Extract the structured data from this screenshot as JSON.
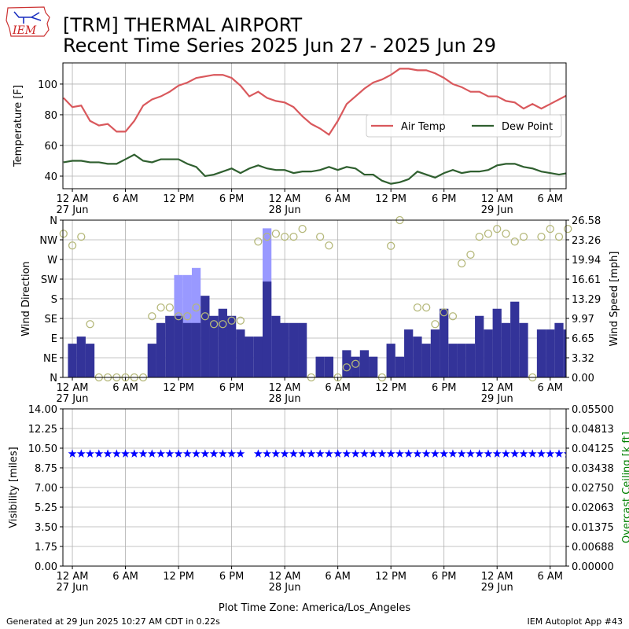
{
  "header": {
    "title_line1": "[TRM] THERMAL AIRPORT",
    "title_line2": "Recent Time Series 2025 Jun 27 - 2025 Jun 29"
  },
  "logo": {
    "text": "IEM"
  },
  "footer": {
    "timezone": "Plot Time Zone: America/Los_Angeles",
    "generated": "Generated at 29 Jun 2025 10:27 AM CDT in 0.22s",
    "app": "IEM Autoplot App #43"
  },
  "chart_data": [
    {
      "type": "line",
      "ylabel": "Temperature [F]",
      "grid": true,
      "legend": "center right",
      "x": [
        -1,
        0,
        1,
        2,
        3,
        4,
        5,
        6,
        7,
        8,
        9,
        10,
        11,
        12,
        13,
        14,
        15,
        16,
        17,
        18,
        19,
        20,
        21,
        22,
        23,
        24,
        25,
        26,
        27,
        28,
        29,
        30,
        31,
        32,
        33,
        34,
        35,
        36,
        37,
        38,
        39,
        40,
        41,
        42,
        43,
        44,
        45,
        46,
        47,
        48,
        49,
        50,
        51,
        52,
        53,
        54,
        55,
        56
      ],
      "xlim": [
        -1.07,
        55.8
      ],
      "xticks": [
        {
          "value": 0,
          "label": "12 AM",
          "sublabel": "27 Jun"
        },
        {
          "value": 6,
          "label": "6 AM"
        },
        {
          "value": 12,
          "label": "12 PM"
        },
        {
          "value": 18,
          "label": "6 PM"
        },
        {
          "value": 24,
          "label": "12 AM",
          "sublabel": "28 Jun"
        },
        {
          "value": 30,
          "label": "6 AM"
        },
        {
          "value": 36,
          "label": "12 PM"
        },
        {
          "value": 42,
          "label": "6 PM"
        },
        {
          "value": 48,
          "label": "12 AM",
          "sublabel": "29 Jun"
        },
        {
          "value": 54,
          "label": "6 AM"
        }
      ],
      "ylim": [
        31.8,
        113.8
      ],
      "yticks": [
        40,
        60,
        80,
        100
      ],
      "series": [
        {
          "name": "Air Temp",
          "color": "#d9585c",
          "values": [
            91,
            85,
            86,
            76,
            73,
            74,
            69,
            69,
            76,
            86,
            90,
            92,
            95,
            99,
            101,
            104,
            105,
            106,
            106,
            104,
            99,
            92,
            95,
            91,
            89,
            88,
            85,
            79,
            74,
            71,
            67,
            76,
            87,
            92,
            97,
            101,
            103,
            106,
            110,
            110,
            109,
            109,
            107,
            104,
            100,
            98,
            95,
            95,
            92,
            92,
            89,
            88,
            84,
            87,
            84,
            87,
            90,
            93
          ]
        },
        {
          "name": "Dew Point",
          "color": "#2f5f2f",
          "values": [
            49,
            50,
            50,
            49,
            49,
            48,
            48,
            51,
            54,
            50,
            49,
            51,
            51,
            51,
            48,
            46,
            40,
            41,
            43,
            45,
            42,
            45,
            47,
            45,
            44,
            44,
            42,
            43,
            43,
            44,
            46,
            44,
            46,
            45,
            41,
            41,
            37,
            35,
            36,
            38,
            43,
            41,
            39,
            42,
            44,
            42,
            43,
            43,
            44,
            47,
            48,
            48,
            46,
            45,
            43,
            42,
            41,
            42
          ]
        }
      ]
    },
    {
      "type": "bar",
      "ylabel": "Wind Direction",
      "y2label": "Wind Speed [mph]",
      "grid": true,
      "x": [
        -1,
        0,
        1,
        2,
        3,
        4,
        5,
        6,
        7,
        8,
        9,
        10,
        11,
        12,
        13,
        14,
        15,
        16,
        17,
        18,
        19,
        20,
        21,
        22,
        23,
        24,
        25,
        26,
        27,
        28,
        29,
        30,
        31,
        32,
        33,
        34,
        35,
        36,
        37,
        38,
        39,
        40,
        41,
        42,
        43,
        44,
        45,
        46,
        47,
        48,
        49,
        50,
        51,
        52,
        53,
        54,
        55,
        56
      ],
      "xlim": [
        -1.07,
        55.8
      ],
      "xticks": [
        {
          "value": 0,
          "label": "12 AM",
          "sublabel": "27 Jun"
        },
        {
          "value": 6,
          "label": "6 AM"
        },
        {
          "value": 12,
          "label": "12 PM"
        },
        {
          "value": 18,
          "label": "6 PM"
        },
        {
          "value": 24,
          "label": "12 AM",
          "sublabel": "28 Jun"
        },
        {
          "value": 30,
          "label": "6 AM"
        },
        {
          "value": 36,
          "label": "12 PM"
        },
        {
          "value": 42,
          "label": "6 PM"
        },
        {
          "value": 48,
          "label": "12 AM",
          "sublabel": "29 Jun"
        },
        {
          "value": 54,
          "label": "6 AM"
        }
      ],
      "ylim": [
        0,
        360
      ],
      "yticks": [
        {
          "value": 0,
          "label": "N"
        },
        {
          "value": 45,
          "label": "NE"
        },
        {
          "value": 90,
          "label": "E"
        },
        {
          "value": 135,
          "label": "SE"
        },
        {
          "value": 180,
          "label": "S"
        },
        {
          "value": 225,
          "label": "SW"
        },
        {
          "value": 270,
          "label": "W"
        },
        {
          "value": 315,
          "label": "NW"
        },
        {
          "value": 360,
          "label": "N"
        }
      ],
      "y2lim": [
        0,
        26.58
      ],
      "y2ticks": [
        {
          "value": 0,
          "label": "0.00"
        },
        3.32,
        6.65,
        9.97,
        13.29,
        16.61,
        19.94,
        23.26,
        26.58
      ],
      "series": [
        {
          "type": "bar",
          "axis": "y2",
          "color": "#9999ff",
          "values": [
            null,
            null,
            null,
            null,
            null,
            null,
            null,
            null,
            null,
            null,
            null,
            null,
            null,
            17.3,
            17.3,
            18.5,
            null,
            null,
            null,
            null,
            null,
            null,
            null,
            25.2,
            null,
            null,
            null,
            null,
            null,
            null,
            null,
            null,
            null,
            null,
            null,
            null,
            null,
            null,
            null,
            null,
            null,
            null,
            null,
            null,
            null,
            null,
            null,
            null,
            null,
            null,
            null,
            null,
            null,
            null,
            null,
            null,
            null,
            null
          ]
        },
        {
          "type": "bar",
          "axis": "y2",
          "color": "#333399",
          "values": [
            null,
            5.7,
            6.9,
            5.7,
            0,
            0,
            0,
            0,
            0,
            0,
            5.7,
            9.2,
            10.4,
            10.4,
            9.2,
            9.2,
            13.8,
            10.4,
            11.6,
            10.4,
            8.1,
            6.9,
            6.9,
            16.2,
            10.4,
            9.2,
            9.2,
            9.2,
            0,
            3.5,
            3.5,
            0,
            4.6,
            3.5,
            4.6,
            3.5,
            0,
            5.7,
            3.5,
            8.1,
            6.9,
            5.7,
            8.1,
            11.6,
            5.7,
            5.7,
            5.7,
            10.4,
            8.1,
            11.6,
            9.2,
            12.8,
            9.2,
            0,
            8.1,
            8.1,
            9.2,
            8.1
          ]
        },
        {
          "type": "scatter",
          "axis": "y",
          "marker": "circle",
          "color": "#b5b87a",
          "values": [
            329,
            302,
            322,
            122,
            0,
            0,
            0,
            0,
            0,
            0,
            140,
            160,
            160,
            140,
            140,
            160,
            140,
            122,
            122,
            130,
            130,
            null,
            311,
            322,
            329,
            322,
            322,
            340,
            0,
            322,
            302,
            0,
            23,
            31,
            null,
            null,
            0,
            301,
            360,
            null,
            160,
            160,
            122,
            149,
            140,
            261,
            281,
            322,
            329,
            340,
            329,
            311,
            322,
            0,
            322,
            340,
            322,
            340
          ]
        }
      ]
    },
    {
      "type": "scatter",
      "ylabel": "Visibility [miles]",
      "y2label": "Overcast Ceiling [k ft]",
      "y2label_color": "#008000",
      "grid": true,
      "x": [
        -1,
        0,
        1,
        2,
        3,
        4,
        5,
        6,
        7,
        8,
        9,
        10,
        11,
        12,
        13,
        14,
        15,
        16,
        17,
        18,
        19,
        20,
        21,
        22,
        23,
        24,
        25,
        26,
        27,
        28,
        29,
        30,
        31,
        32,
        33,
        34,
        35,
        36,
        37,
        38,
        39,
        40,
        41,
        42,
        43,
        44,
        45,
        46,
        47,
        48,
        49,
        50,
        51,
        52,
        53,
        54,
        55,
        56
      ],
      "xlim": [
        -1.07,
        55.8
      ],
      "xticks": [
        {
          "value": 0,
          "label": "12 AM",
          "sublabel": "27 Jun"
        },
        {
          "value": 6,
          "label": "6 AM"
        },
        {
          "value": 12,
          "label": "12 PM"
        },
        {
          "value": 18,
          "label": "6 PM"
        },
        {
          "value": 24,
          "label": "12 AM",
          "sublabel": "28 Jun"
        },
        {
          "value": 30,
          "label": "6 AM"
        },
        {
          "value": 36,
          "label": "12 PM"
        },
        {
          "value": 42,
          "label": "6 PM"
        },
        {
          "value": 48,
          "label": "12 AM",
          "sublabel": "29 Jun"
        },
        {
          "value": 54,
          "label": "6 AM"
        }
      ],
      "ylim": [
        0,
        14
      ],
      "yticks": [
        {
          "value": 0,
          "label": "0.00"
        },
        1.75,
        {
          "value": 3.5,
          "label": "3.50"
        },
        5.25,
        {
          "value": 7,
          "label": "7.00"
        },
        8.75,
        {
          "value": 10.5,
          "label": "10.50"
        },
        12.25,
        {
          "value": 14,
          "label": "14.00"
        }
      ],
      "y2lim": [
        0,
        0.055
      ],
      "y2ticks": [
        {
          "value": 0,
          "label": "0.00000"
        },
        {
          "value": 0.006875,
          "label": "0.00688"
        },
        0.01375,
        {
          "value": 0.020625,
          "label": "0.02063"
        },
        {
          "value": 0.0275,
          "label": "0.02750"
        },
        {
          "value": 0.034375,
          "label": "0.03438"
        },
        0.04125,
        {
          "value": 0.048125,
          "label": "0.04813"
        },
        {
          "value": 0.055,
          "label": "0.05500"
        }
      ],
      "series": [
        {
          "type": "scatter",
          "axis": "y",
          "marker": "star",
          "color": "#0000ff",
          "values": [
            null,
            10,
            10,
            10,
            10,
            10,
            10,
            10,
            10,
            10,
            10,
            10,
            10,
            10,
            10,
            10,
            10,
            10,
            10,
            10,
            10,
            null,
            10,
            10,
            10,
            10,
            10,
            10,
            10,
            10,
            10,
            10,
            10,
            10,
            10,
            10,
            10,
            10,
            10,
            10,
            10,
            10,
            10,
            10,
            10,
            10,
            10,
            10,
            10,
            10,
            10,
            10,
            10,
            10,
            10,
            10,
            10,
            10
          ]
        }
      ]
    }
  ]
}
